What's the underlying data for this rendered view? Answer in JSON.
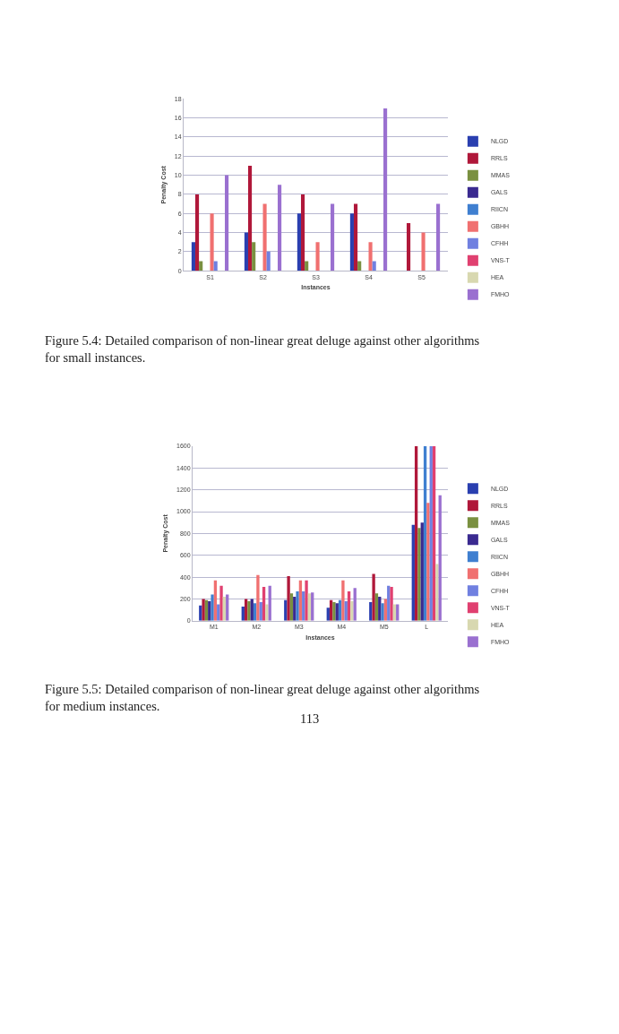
{
  "chart_data": [
    {
      "type": "bar",
      "xlabel": "Instances",
      "ylabel": "Penalty Cost",
      "categories": [
        "S1",
        "S2",
        "S3",
        "S4",
        "S5"
      ],
      "ylim": [
        0,
        18
      ],
      "yticks": [
        0,
        2,
        4,
        6,
        8,
        10,
        12,
        14,
        16,
        18
      ],
      "grid": "y",
      "legend": "right",
      "series": [
        {
          "name": "NLGD",
          "color": "#2a3fb0",
          "values": [
            3,
            4,
            6,
            6,
            0
          ]
        },
        {
          "name": "RRLS",
          "color": "#b0183a",
          "values": [
            8,
            11,
            8,
            7,
            5
          ]
        },
        {
          "name": "MMAS",
          "color": "#7a9040",
          "values": [
            1,
            3,
            1,
            1,
            0
          ]
        },
        {
          "name": "GALS",
          "color": "#3a2a90",
          "values": [
            0,
            0,
            0,
            0,
            0
          ]
        },
        {
          "name": "RIICN",
          "color": "#3f7fd0",
          "values": [
            0,
            0,
            0,
            0,
            0
          ]
        },
        {
          "name": "GBHH",
          "color": "#f07070",
          "values": [
            6,
            7,
            3,
            3,
            4
          ]
        },
        {
          "name": "CFHH",
          "color": "#7080e0",
          "values": [
            1,
            2,
            0,
            1,
            0
          ]
        },
        {
          "name": "VNS-T",
          "color": "#e04070",
          "values": [
            0,
            0,
            0,
            0,
            0
          ]
        },
        {
          "name": "HEA",
          "color": "#d8d8b0",
          "values": [
            0,
            0,
            0,
            0,
            0
          ]
        },
        {
          "name": "FMHO",
          "color": "#9a70d0",
          "values": [
            10,
            9,
            7,
            17,
            7
          ]
        }
      ],
      "annotations": [
        "Figure 5.4: Detailed comparison of non-linear great deluge against other algorithms for small instances."
      ]
    },
    {
      "type": "bar",
      "xlabel": "Instances",
      "ylabel": "Penalty Cost",
      "categories": [
        "M1",
        "M2",
        "M3",
        "M4",
        "M5",
        "L"
      ],
      "ylim": [
        0,
        1600
      ],
      "yticks": [
        0,
        200,
        400,
        600,
        800,
        1000,
        1200,
        1400,
        1600
      ],
      "grid": "y",
      "legend": "right",
      "series": [
        {
          "name": "NLGD",
          "color": "#2a3fb0",
          "values": [
            140,
            130,
            190,
            120,
            170,
            880
          ]
        },
        {
          "name": "RRLS",
          "color": "#b0183a",
          "values": [
            200,
            200,
            410,
            190,
            430,
            1600
          ]
        },
        {
          "name": "MMAS",
          "color": "#7a9040",
          "values": [
            190,
            180,
            250,
            170,
            250,
            850
          ]
        },
        {
          "name": "GALS",
          "color": "#3a2a90",
          "values": [
            180,
            200,
            220,
            160,
            220,
            900
          ]
        },
        {
          "name": "RIICN",
          "color": "#3f7fd0",
          "values": [
            240,
            160,
            270,
            190,
            160,
            1600
          ]
        },
        {
          "name": "GBHH",
          "color": "#f07070",
          "values": [
            370,
            420,
            370,
            370,
            200,
            1080
          ]
        },
        {
          "name": "CFHH",
          "color": "#7080e0",
          "values": [
            150,
            170,
            270,
            180,
            320,
            1600
          ]
        },
        {
          "name": "VNS-T",
          "color": "#e04070",
          "values": [
            320,
            310,
            370,
            270,
            310,
            1600
          ]
        },
        {
          "name": "HEA",
          "color": "#d8d8b0",
          "values": [
            220,
            150,
            250,
            180,
            150,
            520
          ]
        },
        {
          "name": "FMHO",
          "color": "#9a70d0",
          "values": [
            240,
            320,
            260,
            300,
            150,
            1150
          ]
        }
      ],
      "annotations": [
        "Figure 5.5: Detailed comparison of non-linear great deluge against other algorithms for medium instances.",
        "113"
      ]
    }
  ]
}
